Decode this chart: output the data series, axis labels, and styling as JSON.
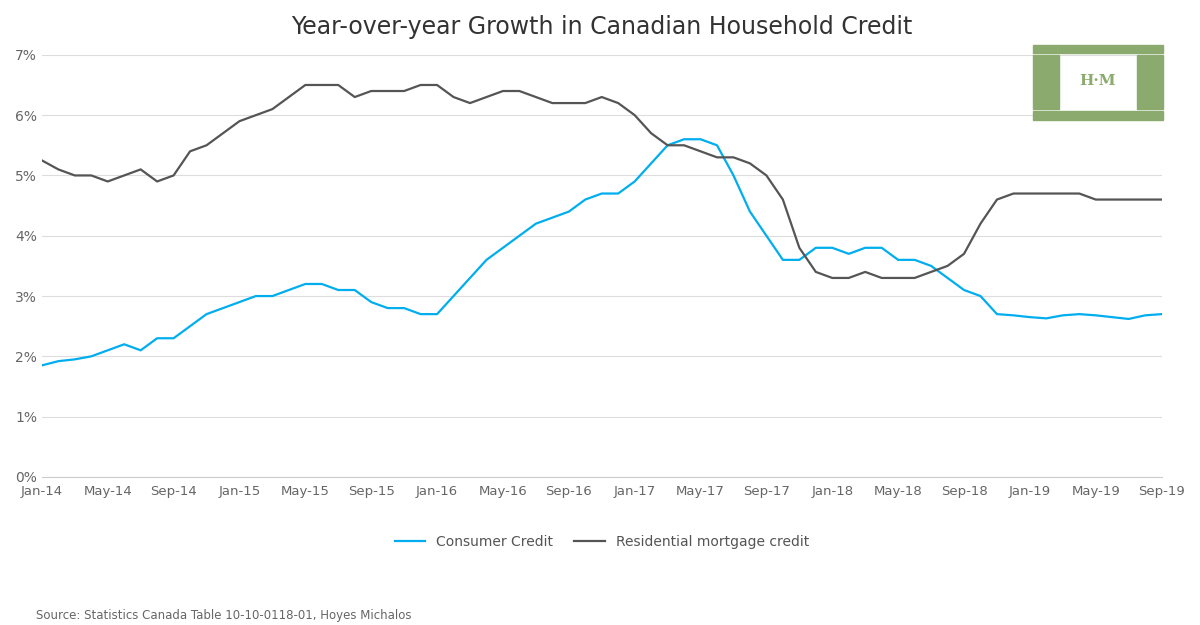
{
  "title": "Year-over-year Growth in Canadian Household Credit",
  "source_text": "Source: Statistics Canada Table 10-10-0118-01, Hoyes Michalos",
  "background_color": "#ffffff",
  "title_fontsize": 17,
  "consumer_color": "#00AEEF",
  "mortgage_color": "#555555",
  "ylim": [
    0.0,
    0.07
  ],
  "yticks": [
    0.0,
    0.01,
    0.02,
    0.03,
    0.04,
    0.05,
    0.06,
    0.07
  ],
  "xtick_labels": [
    "Jan-14",
    "May-14",
    "Sep-14",
    "Jan-15",
    "May-15",
    "Sep-15",
    "Jan-16",
    "May-16",
    "Sep-16",
    "Jan-17",
    "May-17",
    "Sep-17",
    "Jan-18",
    "May-18",
    "Sep-18",
    "Jan-19",
    "May-19",
    "Sep-19"
  ],
  "xtick_positions": [
    0,
    4,
    8,
    12,
    16,
    20,
    24,
    28,
    32,
    36,
    40,
    44,
    48,
    52,
    56,
    60,
    64,
    68
  ],
  "consumer_credit": [
    0.0185,
    0.0192,
    0.0195,
    0.02,
    0.021,
    0.022,
    0.021,
    0.023,
    0.023,
    0.025,
    0.027,
    0.028,
    0.029,
    0.03,
    0.03,
    0.031,
    0.032,
    0.032,
    0.031,
    0.031,
    0.029,
    0.028,
    0.028,
    0.027,
    0.027,
    0.03,
    0.033,
    0.036,
    0.038,
    0.04,
    0.042,
    0.043,
    0.044,
    0.046,
    0.047,
    0.047,
    0.049,
    0.052,
    0.055,
    0.056,
    0.056,
    0.055,
    0.05,
    0.044,
    0.04,
    0.036,
    0.036,
    0.038,
    0.038,
    0.037,
    0.038,
    0.038,
    0.036,
    0.036,
    0.035,
    0.033,
    0.031,
    0.03,
    0.027,
    0.0268,
    0.0265,
    0.0263,
    0.0268,
    0.027,
    0.0268,
    0.0265,
    0.0262,
    0.0268,
    0.027
  ],
  "mortgage_credit": [
    0.0525,
    0.051,
    0.05,
    0.05,
    0.049,
    0.05,
    0.051,
    0.049,
    0.05,
    0.054,
    0.055,
    0.057,
    0.059,
    0.06,
    0.061,
    0.063,
    0.065,
    0.065,
    0.065,
    0.063,
    0.064,
    0.064,
    0.064,
    0.065,
    0.065,
    0.063,
    0.062,
    0.063,
    0.064,
    0.064,
    0.063,
    0.062,
    0.062,
    0.062,
    0.063,
    0.062,
    0.06,
    0.057,
    0.055,
    0.055,
    0.054,
    0.053,
    0.053,
    0.052,
    0.05,
    0.046,
    0.038,
    0.034,
    0.033,
    0.033,
    0.034,
    0.033,
    0.033,
    0.033,
    0.034,
    0.035,
    0.037,
    0.042,
    0.046,
    0.047,
    0.047,
    0.047,
    0.047,
    0.047,
    0.046,
    0.046,
    0.046,
    0.046,
    0.046
  ]
}
